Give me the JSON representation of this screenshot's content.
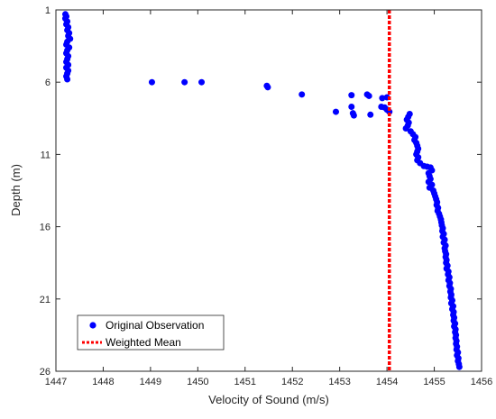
{
  "chart_data": {
    "type": "scatter",
    "xlabel": "Velocity of Sound (m/s)",
    "ylabel": "Depth (m)",
    "xlim": [
      1447,
      1456
    ],
    "ylim": [
      1,
      26
    ],
    "y_reversed": true,
    "x_ticks": [
      "1447",
      "1448",
      "1449",
      "1450",
      "1451",
      "1452",
      "1453",
      "1454",
      "1455",
      "1456"
    ],
    "y_ticks": [
      "1",
      "6",
      "11",
      "16",
      "21",
      "26"
    ],
    "grid": false,
    "legend_position": "bottom-left",
    "colors": {
      "observation": "#0000ff",
      "mean": "#ff0000"
    },
    "series": [
      {
        "name": "Original Observation",
        "kind": "scatter",
        "points": [
          [
            1447.2,
            1.3
          ],
          [
            1447.22,
            1.45
          ],
          [
            1447.2,
            1.6
          ],
          [
            1447.24,
            1.8
          ],
          [
            1447.22,
            2.0
          ],
          [
            1447.26,
            2.2
          ],
          [
            1447.24,
            2.4
          ],
          [
            1447.28,
            2.6
          ],
          [
            1447.26,
            2.8
          ],
          [
            1447.3,
            3.0
          ],
          [
            1447.24,
            3.2
          ],
          [
            1447.22,
            3.4
          ],
          [
            1447.28,
            3.6
          ],
          [
            1447.24,
            3.8
          ],
          [
            1447.22,
            4.0
          ],
          [
            1447.26,
            4.2
          ],
          [
            1447.24,
            4.4
          ],
          [
            1447.22,
            4.6
          ],
          [
            1447.26,
            4.8
          ],
          [
            1447.22,
            5.0
          ],
          [
            1447.26,
            5.2
          ],
          [
            1447.24,
            5.4
          ],
          [
            1447.22,
            5.6
          ],
          [
            1447.24,
            5.8
          ],
          [
            1449.03,
            6.0
          ],
          [
            1449.72,
            6.0
          ],
          [
            1450.08,
            6.0
          ],
          [
            1451.46,
            6.25
          ],
          [
            1451.48,
            6.35
          ],
          [
            1452.2,
            6.85
          ],
          [
            1453.25,
            6.9
          ],
          [
            1453.58,
            6.85
          ],
          [
            1453.62,
            6.95
          ],
          [
            1453.9,
            7.1
          ],
          [
            1454.0,
            7.05
          ],
          [
            1453.25,
            7.7
          ],
          [
            1453.88,
            7.7
          ],
          [
            1453.95,
            7.75
          ],
          [
            1452.92,
            8.05
          ],
          [
            1453.28,
            8.15
          ],
          [
            1453.3,
            8.3
          ],
          [
            1453.65,
            8.25
          ],
          [
            1454.0,
            7.9
          ],
          [
            1454.05,
            8.05
          ],
          [
            1454.48,
            8.2
          ],
          [
            1454.45,
            8.4
          ],
          [
            1454.42,
            8.6
          ],
          [
            1454.46,
            8.8
          ],
          [
            1454.44,
            9.0
          ],
          [
            1454.4,
            9.2
          ],
          [
            1454.5,
            9.4
          ],
          [
            1454.55,
            9.6
          ],
          [
            1454.6,
            9.8
          ],
          [
            1454.58,
            10.0
          ],
          [
            1454.62,
            10.2
          ],
          [
            1454.64,
            10.4
          ],
          [
            1454.66,
            10.6
          ],
          [
            1454.64,
            10.8
          ],
          [
            1454.62,
            11.0
          ],
          [
            1454.66,
            11.2
          ],
          [
            1454.64,
            11.4
          ],
          [
            1454.7,
            11.6
          ],
          [
            1454.78,
            11.8
          ],
          [
            1454.85,
            11.85
          ],
          [
            1454.92,
            11.9
          ],
          [
            1454.95,
            12.1
          ],
          [
            1454.88,
            12.3
          ],
          [
            1454.9,
            12.5
          ],
          [
            1454.92,
            12.7
          ],
          [
            1454.88,
            12.9
          ],
          [
            1454.95,
            13.1
          ],
          [
            1454.9,
            13.3
          ],
          [
            1454.98,
            13.5
          ],
          [
            1455.0,
            13.7
          ],
          [
            1455.02,
            13.9
          ],
          [
            1455.04,
            14.1
          ],
          [
            1455.06,
            14.3
          ],
          [
            1455.05,
            14.5
          ],
          [
            1455.08,
            14.7
          ],
          [
            1455.07,
            14.9
          ],
          [
            1455.1,
            15.1
          ],
          [
            1455.12,
            15.3
          ],
          [
            1455.14,
            15.5
          ],
          [
            1455.15,
            15.7
          ],
          [
            1455.16,
            15.9
          ],
          [
            1455.18,
            16.1
          ],
          [
            1455.17,
            16.3
          ],
          [
            1455.2,
            16.5
          ],
          [
            1455.18,
            16.7
          ],
          [
            1455.22,
            16.9
          ],
          [
            1455.2,
            17.1
          ],
          [
            1455.24,
            17.3
          ],
          [
            1455.22,
            17.5
          ],
          [
            1455.23,
            17.7
          ],
          [
            1455.25,
            17.9
          ],
          [
            1455.24,
            18.1
          ],
          [
            1455.26,
            18.3
          ],
          [
            1455.25,
            18.5
          ],
          [
            1455.28,
            18.7
          ],
          [
            1455.26,
            18.9
          ],
          [
            1455.3,
            19.1
          ],
          [
            1455.29,
            19.3
          ],
          [
            1455.32,
            19.5
          ],
          [
            1455.3,
            19.7
          ],
          [
            1455.33,
            19.9
          ],
          [
            1455.32,
            20.1
          ],
          [
            1455.35,
            20.3
          ],
          [
            1455.34,
            20.5
          ],
          [
            1455.36,
            20.7
          ],
          [
            1455.35,
            20.9
          ],
          [
            1455.38,
            21.1
          ],
          [
            1455.36,
            21.3
          ],
          [
            1455.4,
            21.5
          ],
          [
            1455.38,
            21.7
          ],
          [
            1455.41,
            21.9
          ],
          [
            1455.4,
            22.1
          ],
          [
            1455.42,
            22.3
          ],
          [
            1455.41,
            22.5
          ],
          [
            1455.44,
            22.7
          ],
          [
            1455.42,
            22.9
          ],
          [
            1455.45,
            23.1
          ],
          [
            1455.44,
            23.3
          ],
          [
            1455.46,
            23.5
          ],
          [
            1455.45,
            23.7
          ],
          [
            1455.47,
            23.9
          ],
          [
            1455.46,
            24.1
          ],
          [
            1455.48,
            24.3
          ],
          [
            1455.47,
            24.5
          ],
          [
            1455.5,
            24.7
          ],
          [
            1455.48,
            24.9
          ],
          [
            1455.51,
            25.1
          ],
          [
            1455.5,
            25.3
          ],
          [
            1455.52,
            25.5
          ],
          [
            1455.53,
            25.7
          ]
        ]
      },
      {
        "name": "Weighted Mean",
        "kind": "vline",
        "x": 1454.05
      }
    ]
  }
}
